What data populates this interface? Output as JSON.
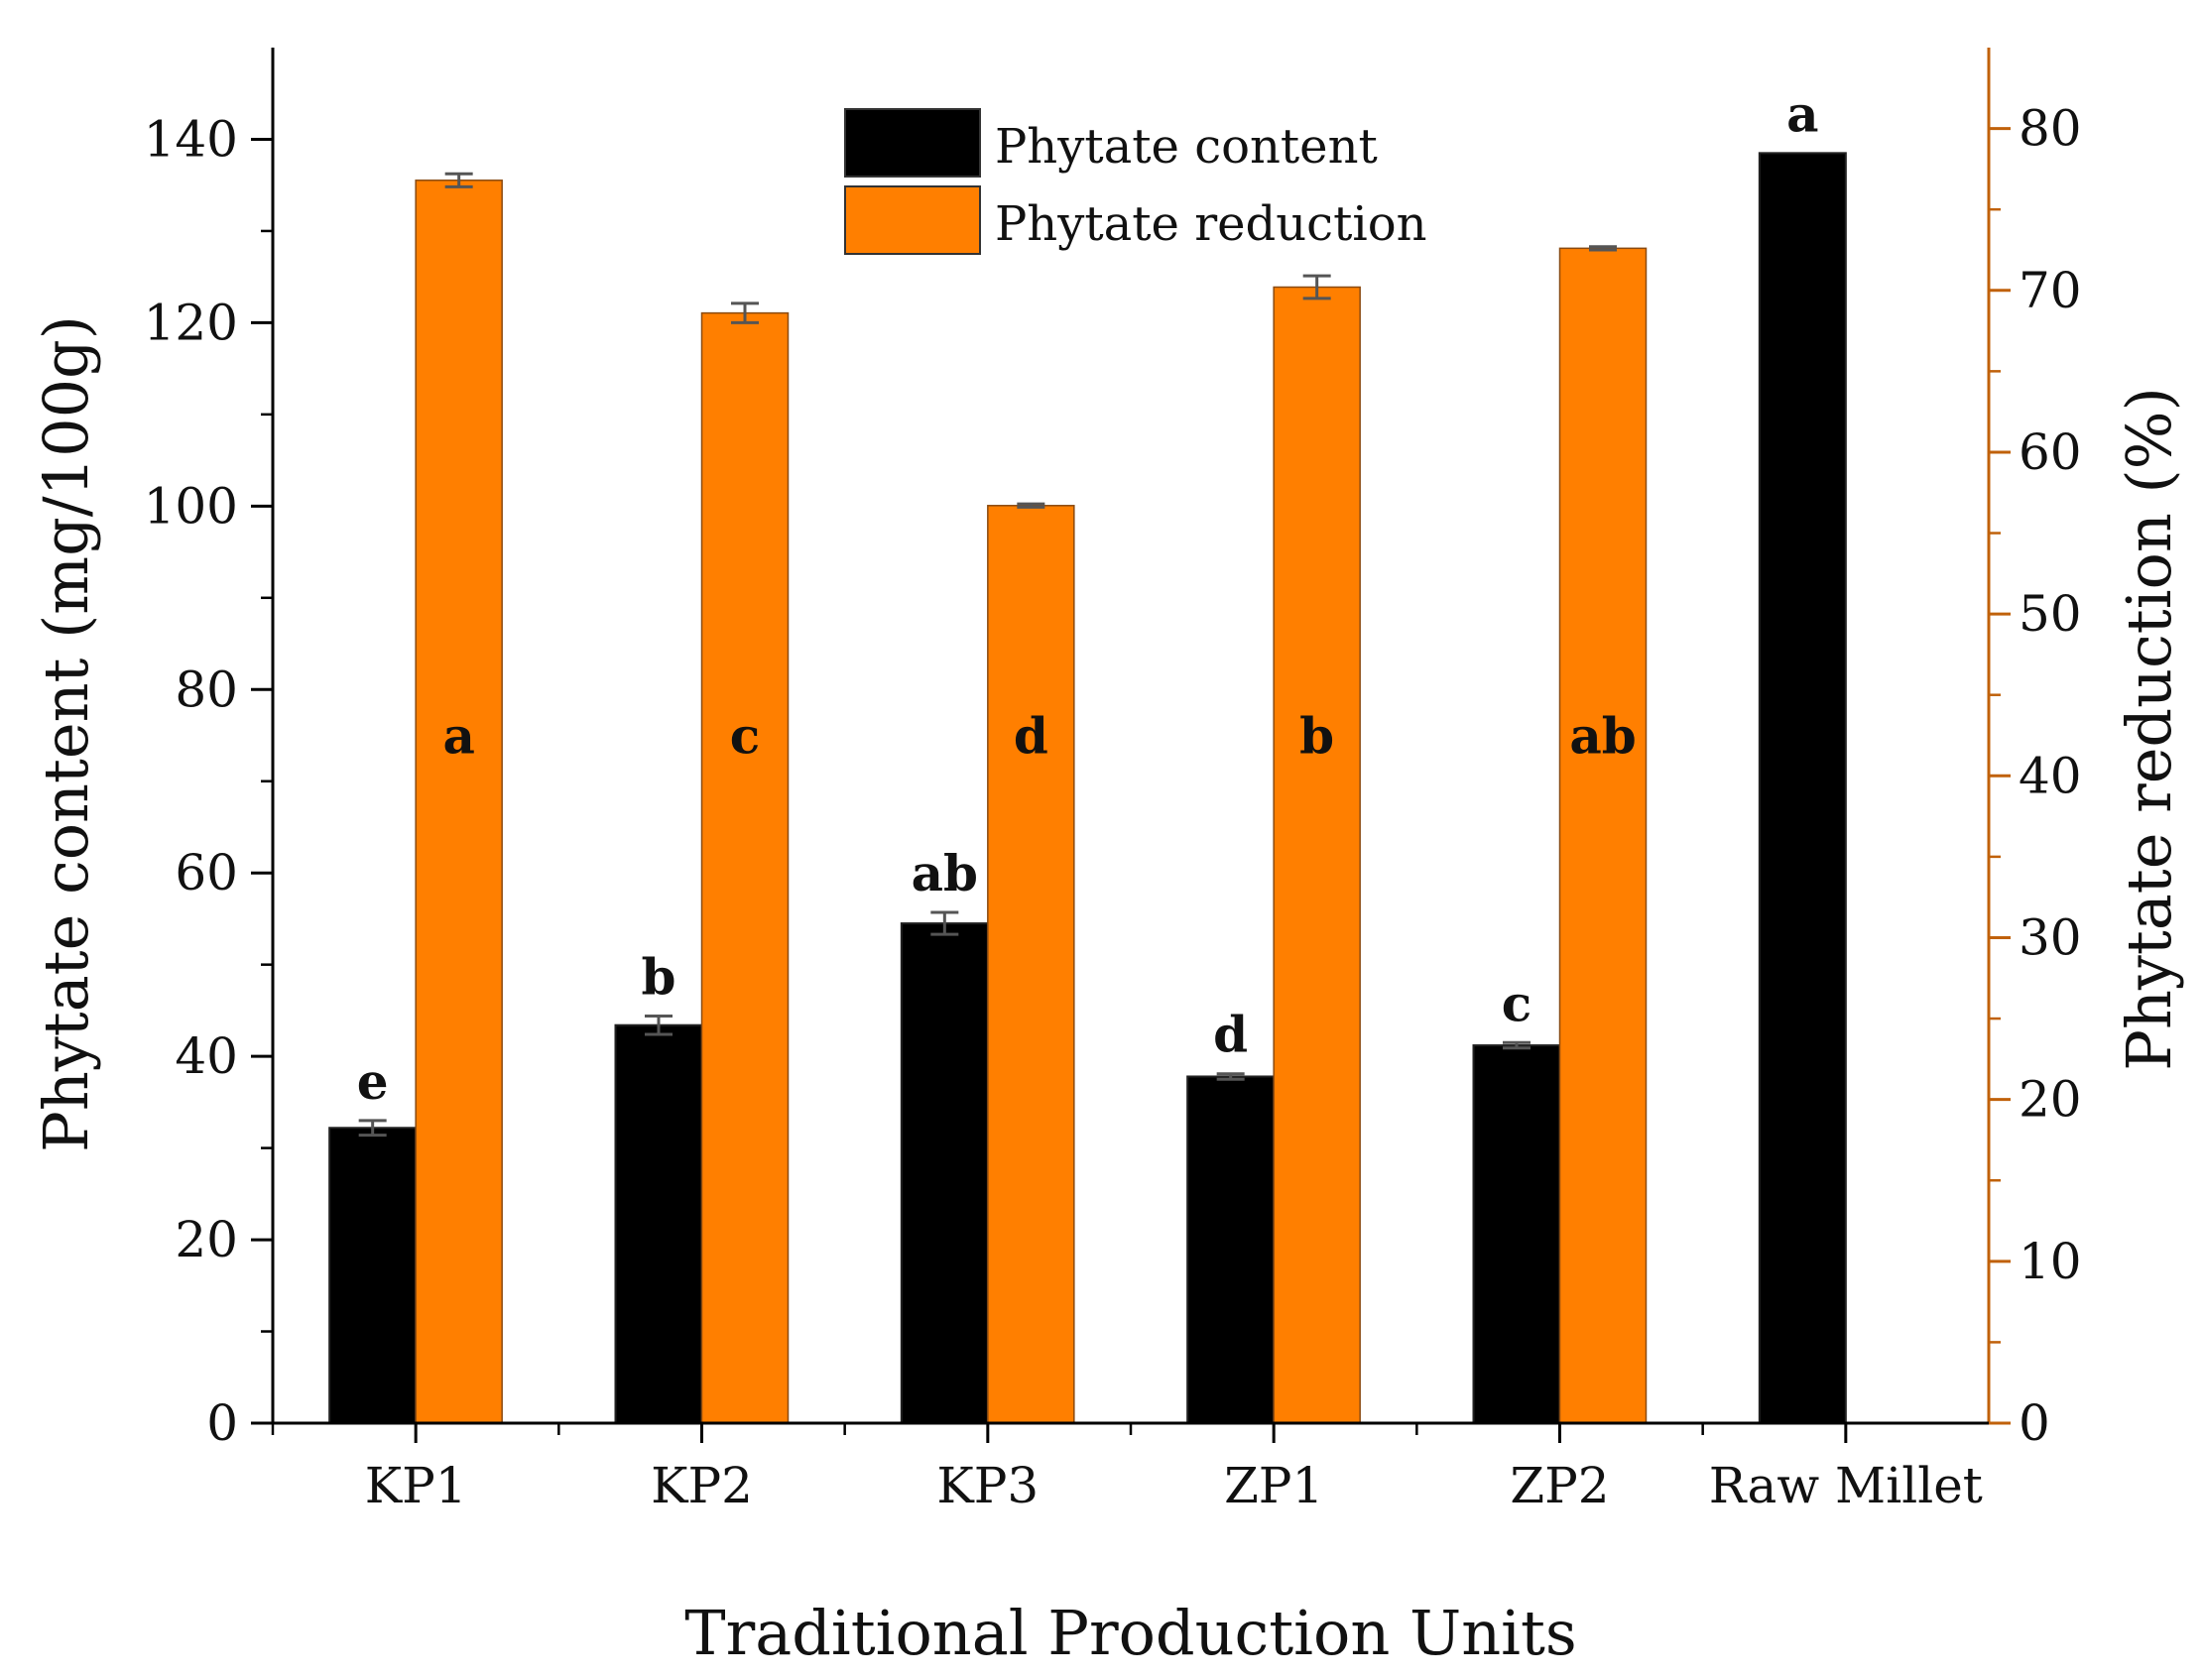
{
  "chart_data": {
    "type": "bar",
    "categories": [
      "KP1",
      "KP2",
      "KP3",
      "ZP1",
      "ZP2",
      "Raw Millet"
    ],
    "xlabel": "Traditional Production Units",
    "ylabel": "Phytate content (mg/100g)",
    "y2label": "Phytate reduction (%)",
    "ylim": [
      0,
      150
    ],
    "y2lim": [
      0,
      85
    ],
    "yticks": [
      0,
      20,
      40,
      60,
      80,
      100,
      120,
      140
    ],
    "y2ticks": [
      0,
      10,
      20,
      30,
      40,
      50,
      60,
      70,
      80
    ],
    "series": [
      {
        "name": "Phytate content",
        "axis": "left",
        "color": "#000000",
        "values": [
          32.2,
          43.4,
          54.5,
          37.8,
          41.2,
          138.5
        ],
        "errors": [
          0.8,
          1.0,
          1.2,
          0.3,
          0.3,
          0
        ],
        "labels": [
          "e",
          "b",
          "ab",
          "d",
          "c",
          "a"
        ]
      },
      {
        "name": "Phytate reduction",
        "axis": "right",
        "color": "#ff7f00",
        "values": [
          76.8,
          68.6,
          56.7,
          70.2,
          72.6,
          null
        ],
        "errors": [
          0.4,
          0.6,
          0.1,
          0.7,
          0.1,
          null
        ],
        "labels": [
          "a",
          "c",
          "d",
          "b",
          "ab",
          ""
        ]
      }
    ],
    "legend_position": "top-center",
    "accent_right_axis": "#c0610a"
  }
}
